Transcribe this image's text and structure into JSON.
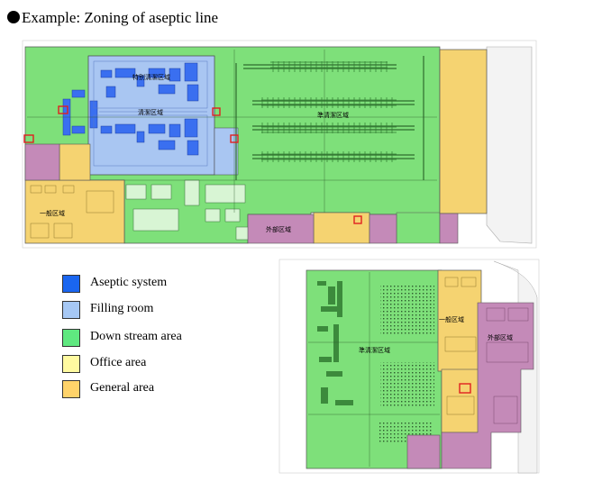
{
  "title": "Example: Zoning of aseptic line",
  "zones": {
    "special_clean": "特别清潔区域",
    "clean": "清潔区域",
    "semi_clean_top": "準清潔区域",
    "general_top": "一般区域",
    "outside_top": "外部区域",
    "semi_clean_bottom": "準清潔区域",
    "general_bottom": "一般区域",
    "outside_bottom": "外部区域"
  },
  "legend": [
    {
      "label": "Aseptic system",
      "color": "#1a66f0"
    },
    {
      "label": "Filling room",
      "color": "#a6c8f5"
    },
    {
      "label": "Down stream area",
      "color": "#5fe880"
    },
    {
      "label": "Office area",
      "color": "#fffaa0"
    },
    {
      "label": "General area",
      "color": "#ffd36a"
    }
  ],
  "colors": {
    "aseptic": "#3a6ff0",
    "filling": "#a9c6f2",
    "downstream": "#7ee07a",
    "office": "#fff2a0",
    "general": "#f5d371",
    "outside": "#c48ab8",
    "frame": "#888888"
  }
}
